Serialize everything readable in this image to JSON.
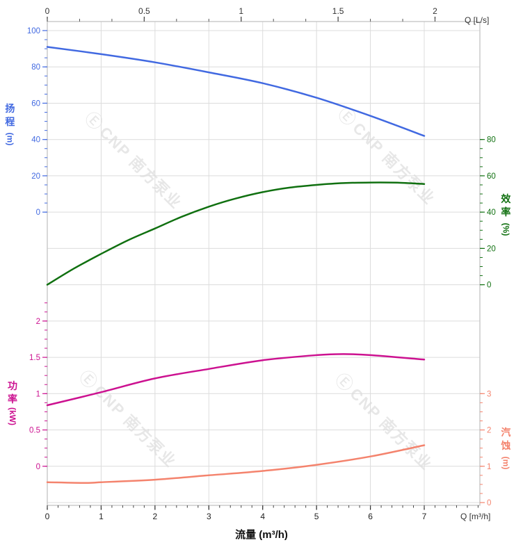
{
  "chart_data": {
    "type": "line",
    "description": "Pump performance curves: head, efficiency, power and NPSH versus flow",
    "x_axis_bottom": {
      "label": "流量 (m³/h)",
      "unit_label": "Q [m³/h]",
      "ticks": [
        0,
        1,
        2,
        3,
        4,
        5,
        6,
        7
      ],
      "range": [
        0,
        8.03
      ]
    },
    "x_axis_top": {
      "unit_label": "Q [L/s]",
      "ticks": [
        0,
        0.5,
        1,
        1.5,
        2
      ]
    },
    "series": [
      {
        "name": "head",
        "axis_title": "扬程",
        "axis_unit": "(m)",
        "side": "left",
        "color": "#4169E1",
        "axis_ticks": [
          100,
          80,
          60,
          40,
          20,
          0
        ],
        "x": [
          0,
          1,
          2,
          3,
          4,
          5,
          6,
          7
        ],
        "y": [
          91,
          87,
          82.5,
          77,
          71,
          63,
          53,
          42
        ]
      },
      {
        "name": "efficiency",
        "axis_title": "效率",
        "axis_unit": "(%)",
        "side": "right",
        "color": "#107010",
        "axis_ticks": [
          80,
          60,
          40,
          20,
          0
        ],
        "x": [
          0,
          0.5,
          1,
          1.5,
          2,
          2.5,
          3,
          3.5,
          4,
          4.5,
          5,
          5.5,
          6,
          6.5,
          7
        ],
        "y": [
          0,
          9,
          17,
          24.5,
          31,
          37.5,
          43,
          47.5,
          51,
          53.5,
          55,
          56,
          56.3,
          56.2,
          55.5
        ]
      },
      {
        "name": "power",
        "axis_title": "功率",
        "axis_unit": "(kW)",
        "side": "left",
        "color": "#CC1190",
        "axis_ticks": [
          2,
          1.5,
          1,
          0.5,
          0
        ],
        "x": [
          0,
          1,
          2,
          3,
          4,
          5,
          5.5,
          6,
          7
        ],
        "y": [
          0.84,
          1.02,
          1.21,
          1.34,
          1.46,
          1.53,
          1.545,
          1.53,
          1.47
        ]
      },
      {
        "name": "npsh",
        "axis_title": "汽蚀",
        "axis_unit": "(m)",
        "side": "right",
        "color": "#F4836D",
        "axis_ticks": [
          3,
          2,
          1,
          0
        ],
        "x": [
          0,
          0.7,
          1,
          2,
          3,
          4,
          5,
          6,
          7
        ],
        "y": [
          0.56,
          0.54,
          0.56,
          0.63,
          0.75,
          0.87,
          1.04,
          1.27,
          1.58
        ]
      }
    ],
    "grid": true,
    "legend": "none"
  },
  "watermark": {
    "logo_glyph": "Ⓔ",
    "text": "CNP 南方泵业"
  }
}
